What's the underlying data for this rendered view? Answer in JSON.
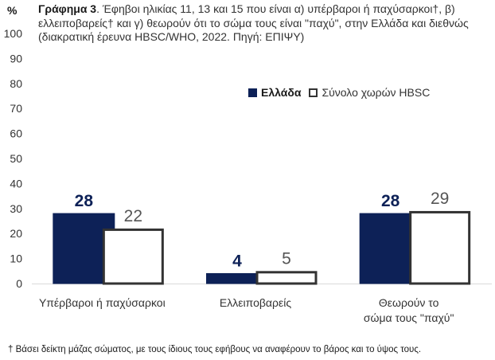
{
  "chart_data": {
    "type": "bar",
    "title_bold": "Γράφημα 3",
    "title_rest": ". Έφηβοι ηλικίας 11, 13 και 15 που είναι α) υπέρβαροι ή παχύσαρκοι†, β) ελλειποβαρείς† και γ) θεωρούν ότι το σώμα τους είναι \"παχύ\", στην Ελλάδα και διεθνώς (διακρατική έρευνα HBSC/WHO, 2022. Πηγή: ΕΠΙΨΥ)",
    "ylabel": "%",
    "ylim": [
      0,
      100
    ],
    "yticks": [
      0,
      10,
      20,
      30,
      40,
      50,
      60,
      70,
      80,
      90,
      100
    ],
    "grid": false,
    "legend_position": "top-right",
    "categories": [
      [
        "Υπέρβαροι ή παχύσαρκοι"
      ],
      [
        "Ελλειποβαρείς"
      ],
      [
        "Θεωρούν το",
        "σώμα τους \"παχύ\""
      ]
    ],
    "series": [
      {
        "name": "Ελλάδα",
        "values": [
          28,
          4,
          28
        ],
        "labels": [
          "28",
          "4",
          "28"
        ],
        "fill": "#0d2157",
        "stroke": "#0d2157"
      },
      {
        "name": "Σύνολο χωρών HBSC",
        "values": [
          22,
          5,
          29
        ],
        "labels": [
          "22",
          "5",
          "29"
        ],
        "fill": "#ffffff",
        "stroke": "#333333"
      }
    ],
    "footnote": "† Βάσει δείκτη μάζας σώματος, με τους ίδιους τους εφήβους να αναφέρουν το βάρος και το ύψος τους."
  }
}
